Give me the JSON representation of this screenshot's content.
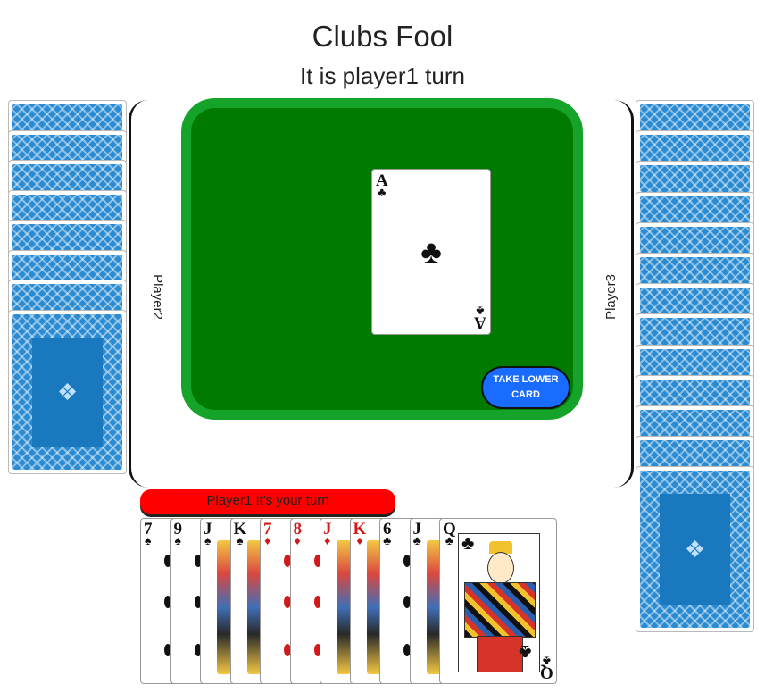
{
  "header": {
    "title": "Clubs Fool",
    "turn_status": "It is player1 turn"
  },
  "players": {
    "left_label": "Player2",
    "right_label": "Player3"
  },
  "table": {
    "pile_card": {
      "rank": "A",
      "suit": "♣",
      "color": "black"
    },
    "take_button_label": "TAKE LOWER CARD"
  },
  "turn_banner": "Player1 It's your turn",
  "hand": [
    {
      "rank": "7",
      "suit": "♠",
      "color": "black",
      "court": false
    },
    {
      "rank": "9",
      "suit": "♠",
      "color": "black",
      "court": false
    },
    {
      "rank": "J",
      "suit": "♠",
      "color": "black",
      "court": true
    },
    {
      "rank": "K",
      "suit": "♠",
      "color": "black",
      "court": true
    },
    {
      "rank": "7",
      "suit": "♦",
      "color": "red",
      "court": false
    },
    {
      "rank": "8",
      "suit": "♦",
      "color": "red",
      "court": false
    },
    {
      "rank": "J",
      "suit": "♦",
      "color": "red",
      "court": true
    },
    {
      "rank": "K",
      "suit": "♦",
      "color": "red",
      "court": true
    },
    {
      "rank": "6",
      "suit": "♣",
      "color": "black",
      "court": false
    },
    {
      "rank": "J",
      "suit": "♣",
      "color": "black",
      "court": true
    },
    {
      "rank": "Q",
      "suit": "♣",
      "color": "black",
      "court": true
    }
  ],
  "opponents": {
    "left_card_count": 8,
    "right_card_count": 13
  },
  "colors": {
    "table_felt": "#007a00",
    "table_rim": "#16a32a",
    "button": "#1a6bff",
    "banner": "#ff0000",
    "card_back": "#2b8bd2"
  }
}
